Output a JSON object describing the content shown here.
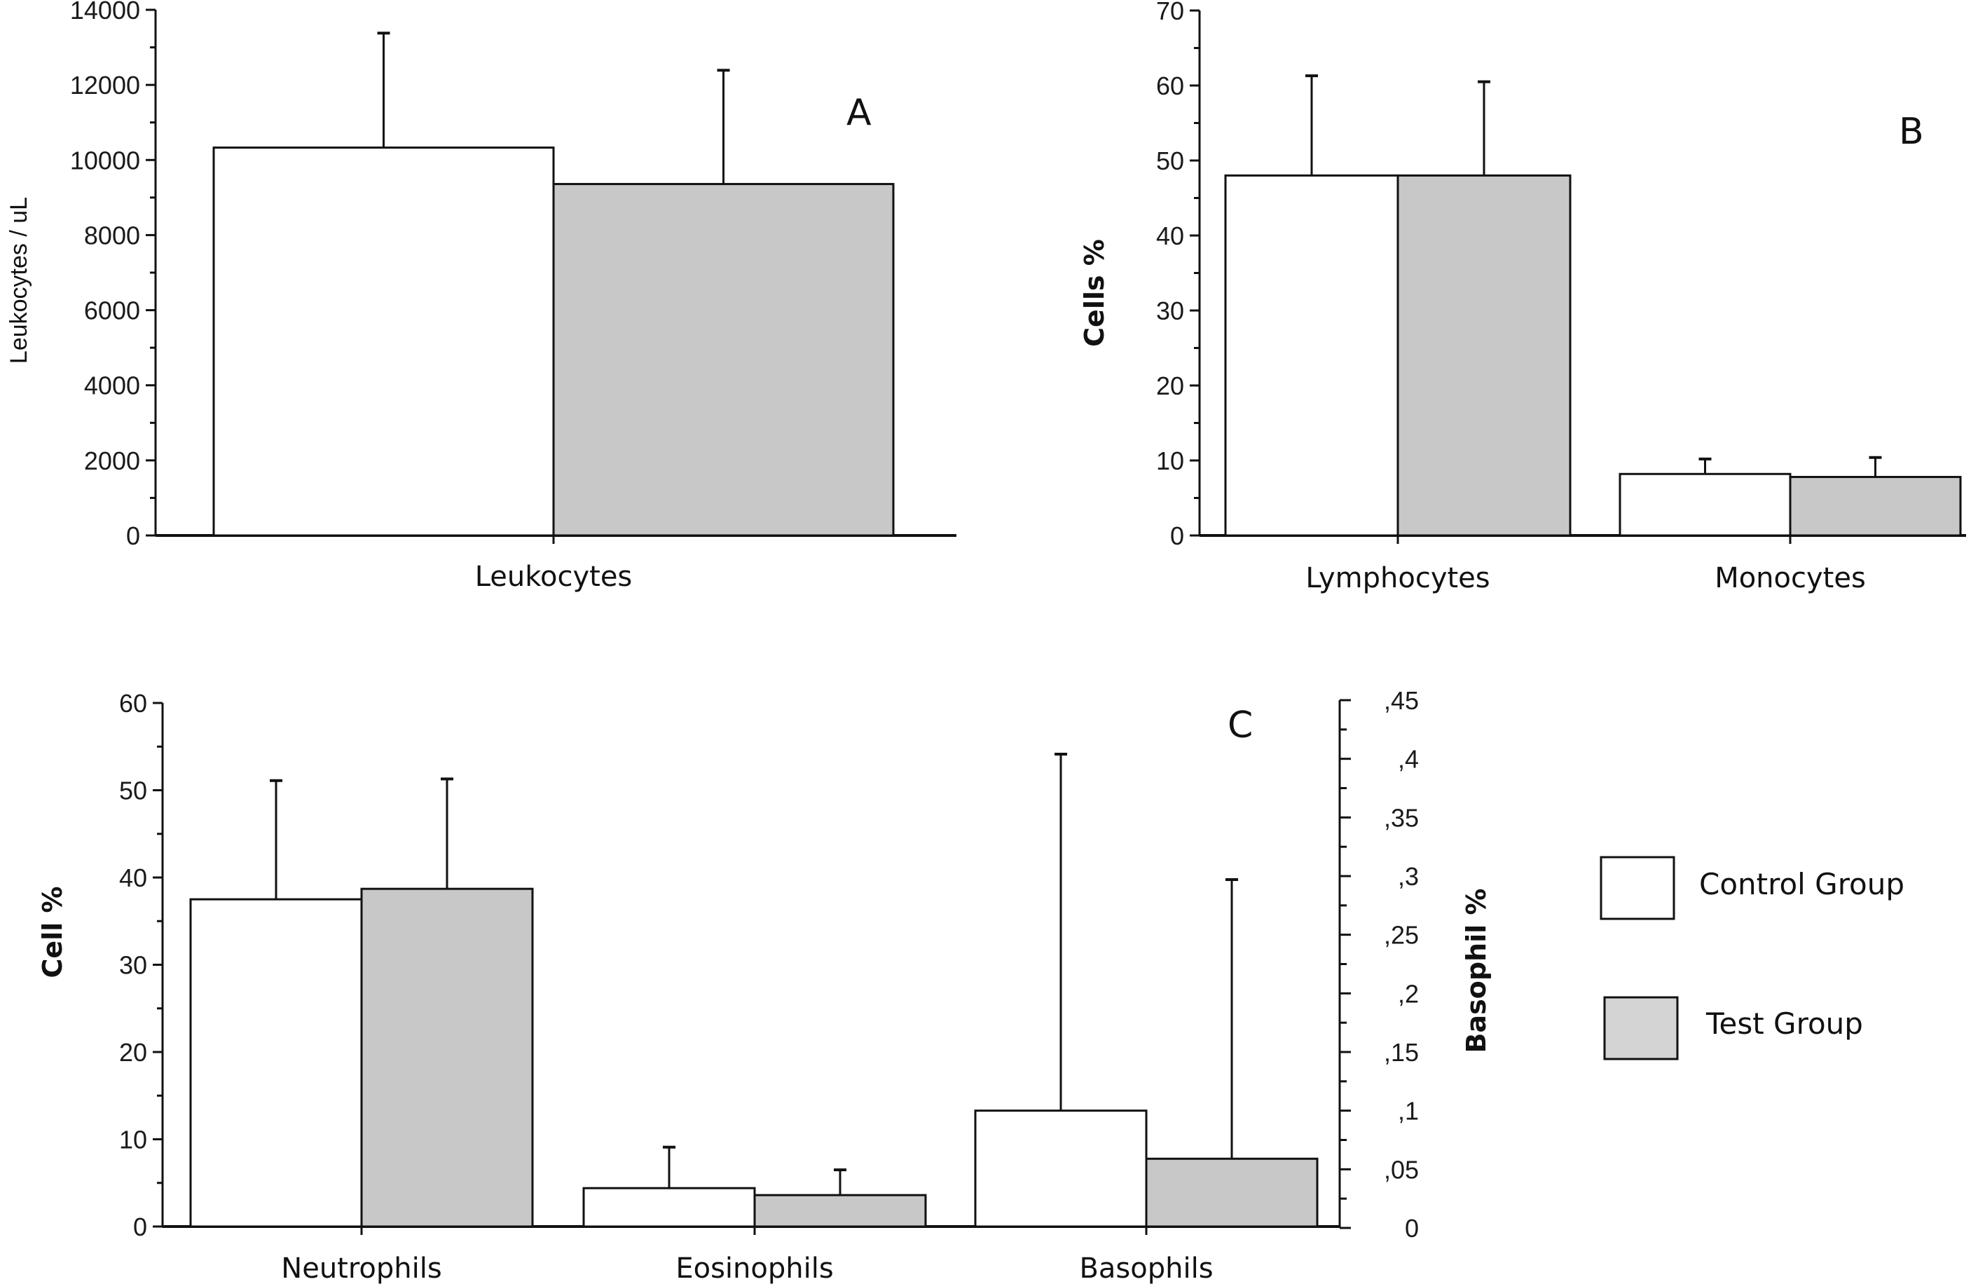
{
  "colors": {
    "control_fill": "#ffffff",
    "test_fill": "#c8c8c8",
    "stroke": "#111111"
  },
  "legend": {
    "items": [
      {
        "name": "Control Group",
        "color": "#ffffff"
      },
      {
        "name": "Test Group",
        "color": "#d4d4d4"
      }
    ]
  },
  "chart_data": [
    {
      "id": "A",
      "type": "bar",
      "panel_letter": "A",
      "title": "",
      "xlabel": "",
      "ylabel": "Leukocytes / uL",
      "ylim": [
        0,
        14000
      ],
      "yticks": [
        0,
        2000,
        4000,
        6000,
        8000,
        10000,
        12000,
        14000
      ],
      "ytick_labels": [
        "0",
        "2000",
        "4000",
        "6000",
        "8000",
        "10000",
        "12000",
        "14000"
      ],
      "categories": [
        "Leukocytes"
      ],
      "series": [
        {
          "name": "Control Group",
          "values": [
            10330
          ],
          "error_upper": [
            13380
          ]
        },
        {
          "name": "Test Group",
          "values": [
            9360
          ],
          "error_upper": [
            12390
          ]
        }
      ],
      "grid": false
    },
    {
      "id": "B",
      "type": "bar",
      "panel_letter": "B",
      "title": "",
      "xlabel": "",
      "ylabel": "Cells %",
      "ylim": [
        0,
        70
      ],
      "yticks": [
        0,
        10,
        20,
        30,
        40,
        50,
        60,
        70
      ],
      "ytick_labels": [
        "0",
        "10",
        "20",
        "30",
        "40",
        "50",
        "60",
        "70"
      ],
      "categories": [
        "Lymphocytes",
        "Monocytes"
      ],
      "series": [
        {
          "name": "Control Group",
          "values": [
            48.0,
            8.2
          ],
          "error_upper": [
            61.3,
            10.2
          ]
        },
        {
          "name": "Test Group",
          "values": [
            48.0,
            7.8
          ],
          "error_upper": [
            60.5,
            10.4
          ]
        }
      ],
      "grid": false
    },
    {
      "id": "C",
      "type": "bar",
      "panel_letter": "C",
      "title": "",
      "xlabel": "",
      "ylabel": "Cell %",
      "ylim": [
        0,
        60
      ],
      "yticks": [
        0,
        10,
        20,
        30,
        40,
        50,
        60
      ],
      "ytick_labels": [
        "0",
        "10",
        "20",
        "30",
        "40",
        "50",
        "60"
      ],
      "y2label": "Basophil %",
      "y2lim": [
        0,
        0.45
      ],
      "y2ticks": [
        0,
        0.05,
        0.1,
        0.15,
        0.2,
        0.25,
        0.3,
        0.35,
        0.4,
        0.45
      ],
      "y2tick_labels": [
        "0",
        ",05",
        ",1",
        ",15",
        ",2",
        ",25",
        ",3",
        ",35",
        ",4",
        ",45"
      ],
      "categories": [
        "Neutrophils",
        "Eosinophils",
        "Basophils"
      ],
      "category_axis": [
        "left",
        "left",
        "right"
      ],
      "series": [
        {
          "name": "Control Group",
          "values": [
            37.5,
            4.4,
            0.1
          ],
          "error_upper": [
            51.1,
            9.1,
            0.404
          ]
        },
        {
          "name": "Test Group",
          "values": [
            38.7,
            3.6,
            0.059
          ],
          "error_upper": [
            51.3,
            6.5,
            0.297
          ]
        }
      ],
      "legend_position": "right",
      "grid": false
    }
  ]
}
